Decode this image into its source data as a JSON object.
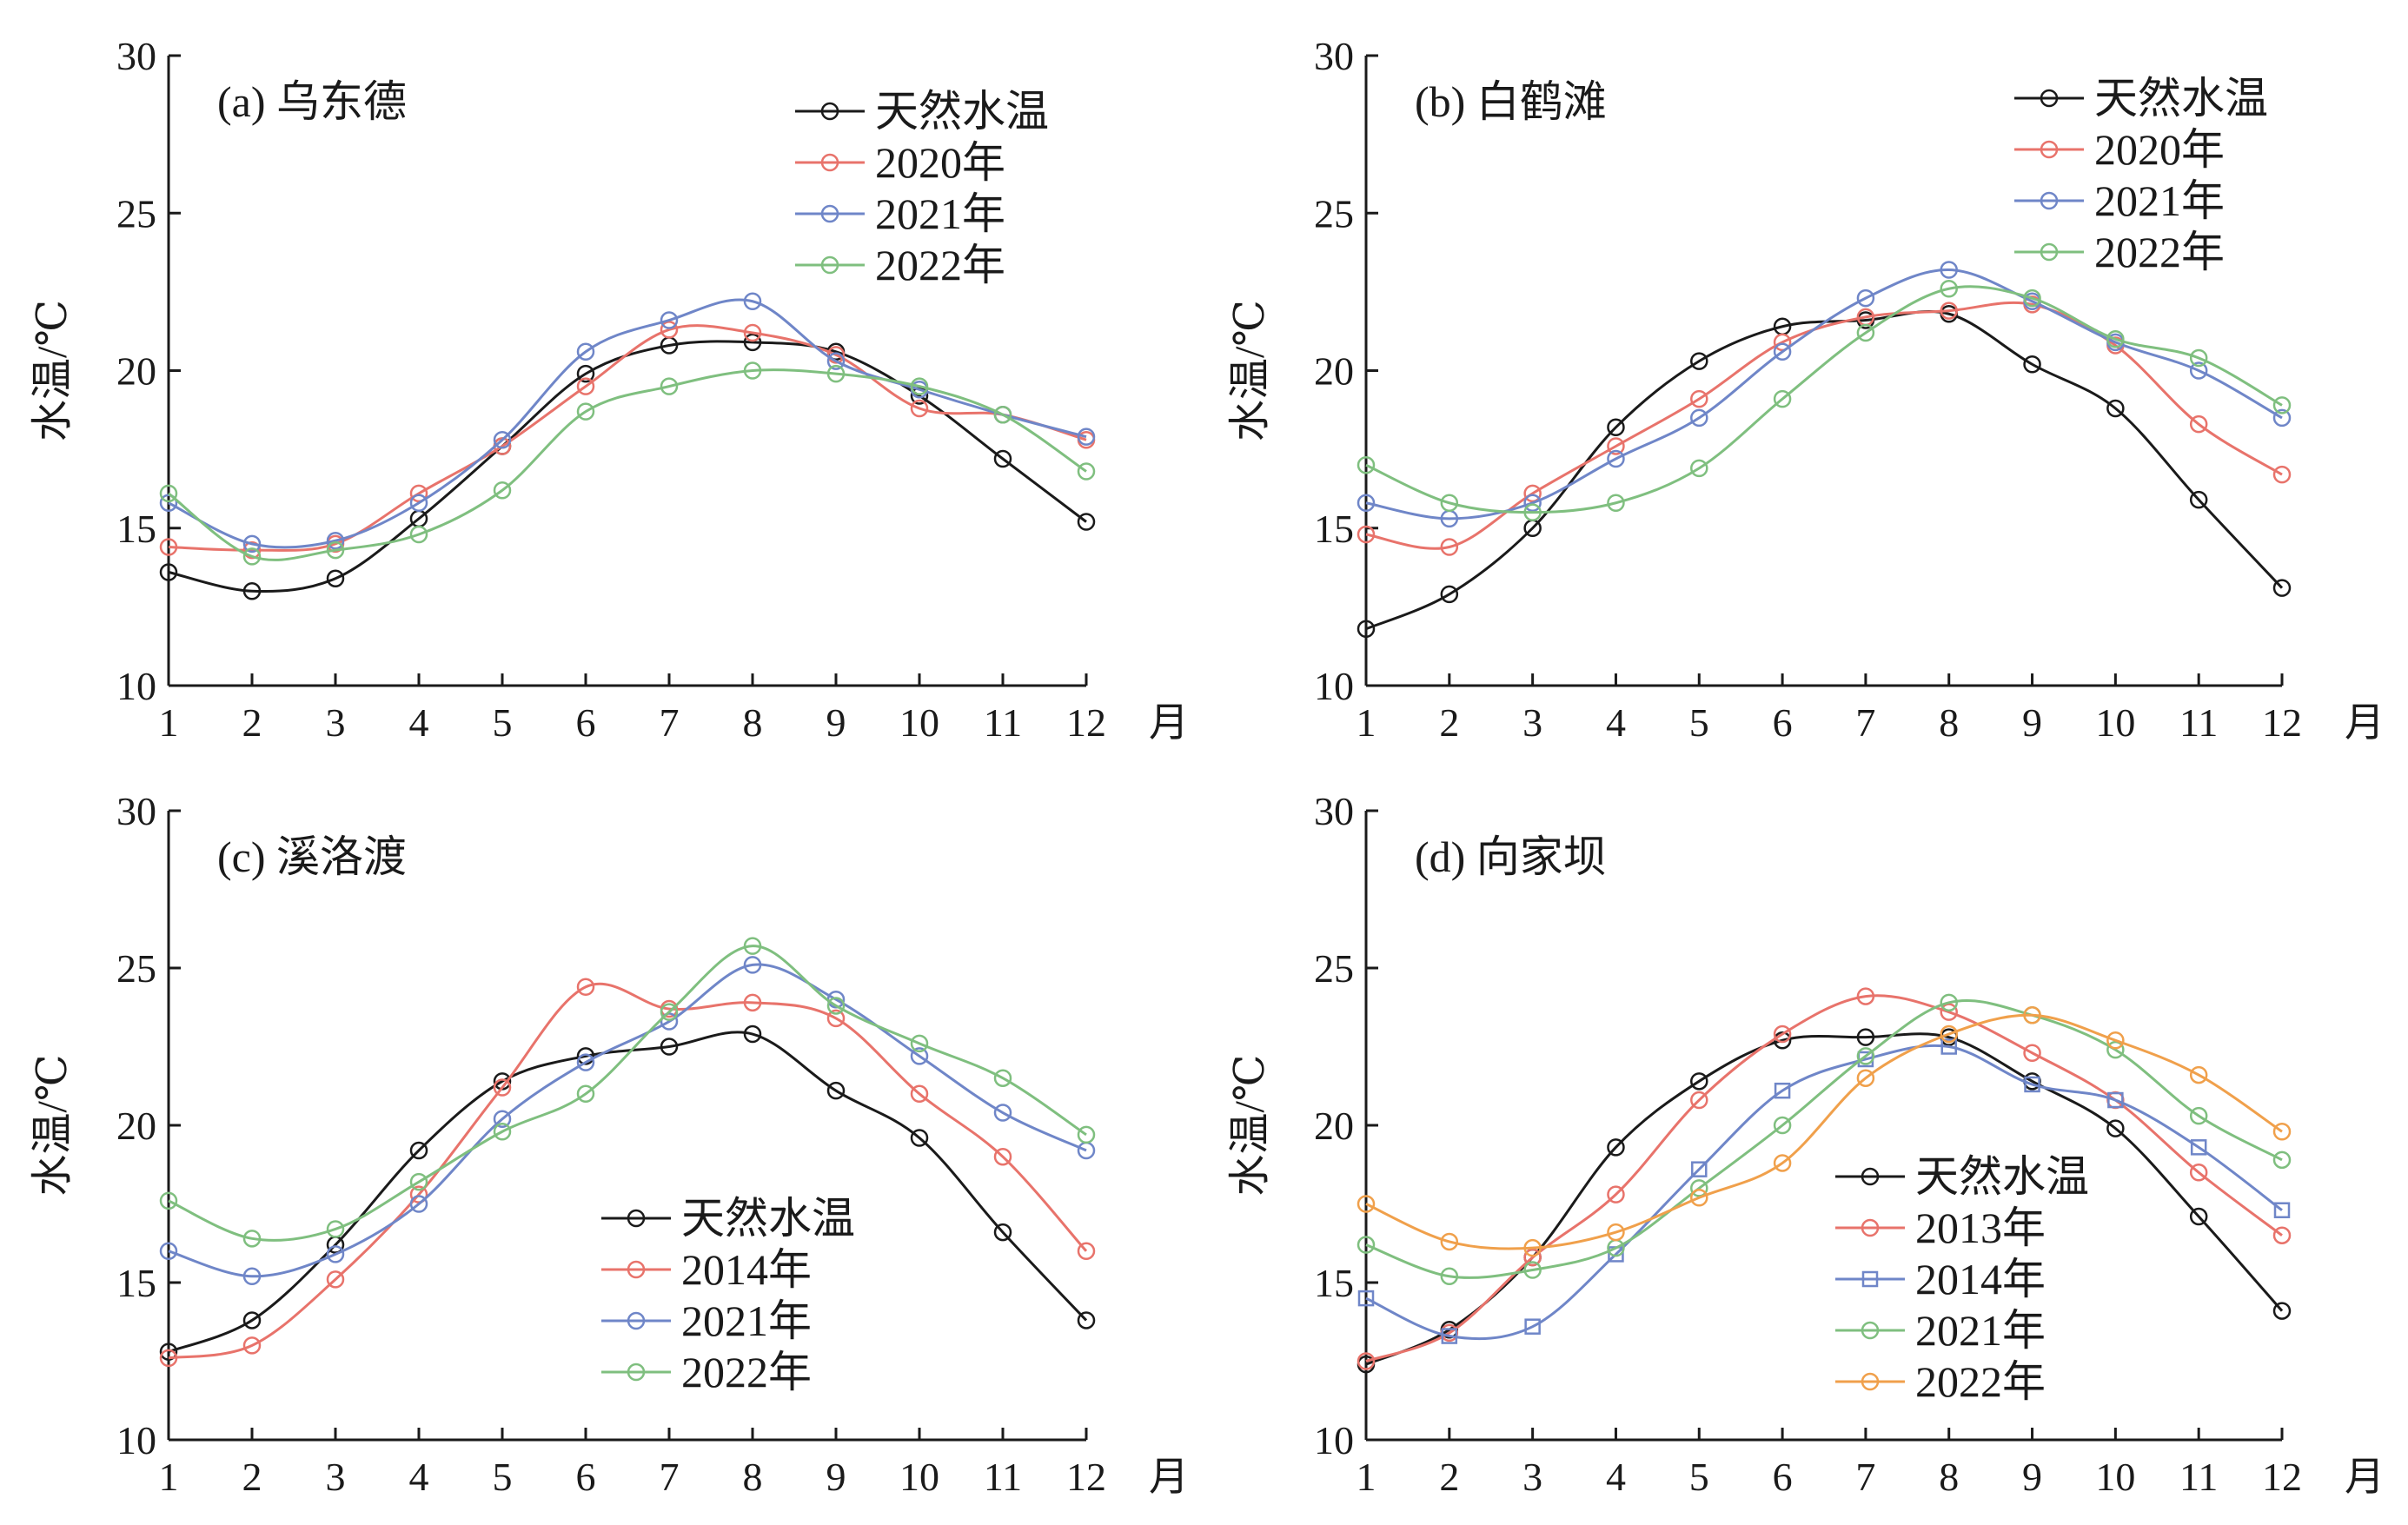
{
  "chart_data": [
    {
      "type": "line",
      "title": "(a) 乌东德",
      "xlabel": "月",
      "ylabel": "水温/℃",
      "categories": [
        1,
        2,
        3,
        4,
        5,
        6,
        7,
        8,
        9,
        10,
        11,
        12
      ],
      "xticks": [
        "1",
        "2",
        "3",
        "4",
        "5",
        "6",
        "7",
        "8",
        "9",
        "10",
        "11",
        "12"
      ],
      "ylim": [
        10,
        30
      ],
      "yticks": [
        "10",
        "15",
        "20",
        "25",
        "30"
      ],
      "legend_position": "top-right",
      "series": [
        {
          "name": "天然水温",
          "color": "#1a1a1a",
          "marker": "circle",
          "values": [
            13.6,
            13.0,
            13.4,
            15.3,
            17.6,
            19.9,
            20.8,
            20.9,
            20.6,
            19.2,
            17.2,
            15.2
          ]
        },
        {
          "name": "2020年",
          "color": "#e8736b",
          "marker": "circle",
          "values": [
            14.4,
            14.3,
            14.5,
            16.1,
            17.6,
            19.5,
            21.3,
            21.2,
            20.5,
            18.8,
            18.6,
            17.8
          ]
        },
        {
          "name": "2021年",
          "color": "#6f86c8",
          "marker": "circle",
          "values": [
            15.8,
            14.5,
            14.6,
            15.8,
            17.8,
            20.6,
            21.6,
            22.2,
            20.3,
            19.4,
            18.6,
            17.9
          ]
        },
        {
          "name": "2022年",
          "color": "#7fbf7f",
          "marker": "circle",
          "values": [
            16.1,
            14.1,
            14.3,
            14.8,
            16.2,
            18.7,
            19.5,
            20.0,
            19.9,
            19.5,
            18.6,
            16.8
          ]
        }
      ]
    },
    {
      "type": "line",
      "title": "(b) 白鹤滩",
      "xlabel": "月",
      "ylabel": "水温/℃",
      "categories": [
        1,
        2,
        3,
        4,
        5,
        6,
        7,
        8,
        9,
        10,
        11,
        12
      ],
      "xticks": [
        "1",
        "2",
        "3",
        "4",
        "5",
        "6",
        "7",
        "8",
        "9",
        "10",
        "11",
        "12"
      ],
      "ylim": [
        10,
        30
      ],
      "yticks": [
        "10",
        "15",
        "20",
        "25",
        "30"
      ],
      "legend_position": "top-right",
      "series": [
        {
          "name": "天然水温",
          "color": "#1a1a1a",
          "marker": "circle",
          "values": [
            11.8,
            12.9,
            15.0,
            18.2,
            20.3,
            21.4,
            21.6,
            21.8,
            20.2,
            18.8,
            15.9,
            13.1
          ]
        },
        {
          "name": "2020年",
          "color": "#e8736b",
          "marker": "circle",
          "values": [
            14.8,
            14.4,
            16.1,
            17.6,
            19.1,
            20.9,
            21.7,
            21.9,
            22.1,
            20.8,
            18.3,
            16.7
          ]
        },
        {
          "name": "2021年",
          "color": "#6f86c8",
          "marker": "circle",
          "values": [
            15.8,
            15.3,
            15.8,
            17.2,
            18.5,
            20.6,
            22.3,
            23.2,
            22.2,
            20.9,
            20.0,
            18.5
          ]
        },
        {
          "name": "2022年",
          "color": "#7fbf7f",
          "marker": "circle",
          "values": [
            17.0,
            15.8,
            15.5,
            15.8,
            16.9,
            19.1,
            21.2,
            22.6,
            22.3,
            21.0,
            20.4,
            18.9
          ]
        }
      ]
    },
    {
      "type": "line",
      "title": "(c) 溪洛渡",
      "xlabel": "月",
      "ylabel": "水温/℃",
      "categories": [
        1,
        2,
        3,
        4,
        5,
        6,
        7,
        8,
        9,
        10,
        11,
        12
      ],
      "xticks": [
        "1",
        "2",
        "3",
        "4",
        "5",
        "6",
        "7",
        "8",
        "9",
        "10",
        "11",
        "12"
      ],
      "ylim": [
        10,
        30
      ],
      "yticks": [
        "10",
        "15",
        "20",
        "25",
        "30"
      ],
      "legend_position": "bottom-center",
      "series": [
        {
          "name": "天然水温",
          "color": "#1a1a1a",
          "marker": "circle",
          "values": [
            12.8,
            13.8,
            16.2,
            19.2,
            21.4,
            22.2,
            22.5,
            22.9,
            21.1,
            19.6,
            16.6,
            13.8
          ]
        },
        {
          "name": "2014年",
          "color": "#e8736b",
          "marker": "circle",
          "values": [
            12.6,
            13.0,
            15.1,
            17.8,
            21.2,
            24.4,
            23.7,
            23.9,
            23.4,
            21.0,
            19.0,
            16.0
          ]
        },
        {
          "name": "2021年",
          "color": "#6f86c8",
          "marker": "circle",
          "values": [
            16.0,
            15.2,
            15.9,
            17.5,
            20.2,
            22.0,
            23.3,
            25.1,
            24.0,
            22.2,
            20.4,
            19.2
          ]
        },
        {
          "name": "2022年",
          "color": "#7fbf7f",
          "marker": "circle",
          "values": [
            17.6,
            16.4,
            16.7,
            18.2,
            19.8,
            21.0,
            23.6,
            25.7,
            23.8,
            22.6,
            21.5,
            19.7
          ]
        }
      ]
    },
    {
      "type": "line",
      "title": "(d) 向家坝",
      "xlabel": "月",
      "ylabel": "水温/℃",
      "categories": [
        1,
        2,
        3,
        4,
        5,
        6,
        7,
        8,
        9,
        10,
        11,
        12
      ],
      "xticks": [
        "1",
        "2",
        "3",
        "4",
        "5",
        "6",
        "7",
        "8",
        "9",
        "10",
        "11",
        "12"
      ],
      "ylim": [
        10,
        30
      ],
      "yticks": [
        "10",
        "15",
        "20",
        "25",
        "30"
      ],
      "legend_position": "bottom-center",
      "series": [
        {
          "name": "天然水温",
          "color": "#1a1a1a",
          "marker": "circle",
          "values": [
            12.4,
            13.5,
            15.8,
            19.3,
            21.4,
            22.7,
            22.8,
            22.8,
            21.4,
            19.9,
            17.1,
            14.1
          ]
        },
        {
          "name": "2013年",
          "color": "#e8736b",
          "marker": "circle",
          "values": [
            12.5,
            13.4,
            15.8,
            17.8,
            20.8,
            22.9,
            24.1,
            23.6,
            22.3,
            20.8,
            18.5,
            16.5
          ]
        },
        {
          "name": "2014年",
          "color": "#6f86c8",
          "marker": "square",
          "values": [
            14.5,
            13.3,
            13.6,
            15.9,
            18.6,
            21.1,
            22.1,
            22.5,
            21.3,
            20.8,
            19.3,
            17.3
          ]
        },
        {
          "name": "2021年",
          "color": "#7fbf7f",
          "marker": "circle",
          "values": [
            16.2,
            15.2,
            15.4,
            16.1,
            18.0,
            20.0,
            22.2,
            23.9,
            23.5,
            22.4,
            20.3,
            18.9
          ]
        },
        {
          "name": "2022年",
          "color": "#f0a04b",
          "marker": "circle",
          "values": [
            17.5,
            16.3,
            16.1,
            16.6,
            17.7,
            18.8,
            21.5,
            22.9,
            23.5,
            22.7,
            21.6,
            19.8
          ]
        }
      ]
    }
  ]
}
